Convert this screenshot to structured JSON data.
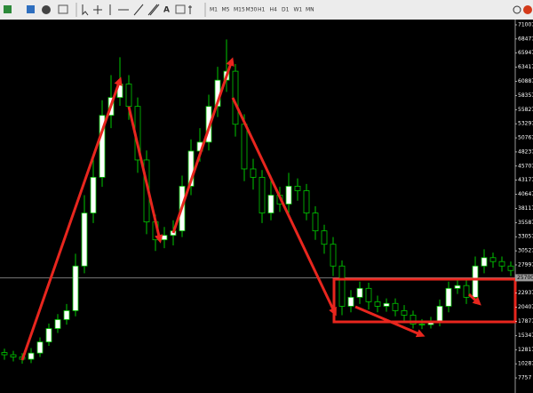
{
  "toolbar": {
    "timeframes": [
      "M1",
      "M5",
      "M15",
      "M30",
      "H1",
      "H4",
      "D1",
      "W1",
      "MN"
    ]
  },
  "chart_data": {
    "type": "candlestick",
    "open": [
      12300,
      11900,
      11500,
      11100,
      12200,
      14200,
      16600,
      18200,
      19800,
      27800,
      37300,
      43700,
      54800,
      58000,
      60400,
      56400,
      46800,
      35700,
      32500,
      33300,
      34100,
      42100,
      48400,
      50000,
      56400,
      61100,
      62700,
      53200,
      45200,
      43700,
      37300,
      40500,
      38900,
      42100,
      41300,
      37300,
      34100,
      31700,
      27800,
      20600,
      22200,
      23800,
      21400,
      20600,
      21100,
      19800,
      19000,
      17400,
      17300,
      17900,
      20600,
      23800,
      24300,
      22200,
      27800,
      29300,
      28600,
      27800
    ],
    "high": [
      13000,
      12600,
      12200,
      13100,
      15000,
      17500,
      19200,
      21000,
      30000,
      40500,
      47000,
      57500,
      62000,
      65200,
      62000,
      58000,
      48500,
      37000,
      34800,
      36000,
      44000,
      50500,
      52500,
      58500,
      63500,
      68400,
      64000,
      55000,
      47000,
      45000,
      44000,
      42000,
      44500,
      43500,
      42500,
      38500,
      35200,
      33000,
      28800,
      23500,
      25000,
      24800,
      22500,
      22000,
      22000,
      20800,
      19800,
      18300,
      18700,
      21800,
      25000,
      25500,
      25200,
      29500,
      30800,
      30200,
      29500,
      28600
    ],
    "low": [
      11000,
      10700,
      10300,
      10400,
      11500,
      13500,
      15800,
      17300,
      18800,
      26500,
      35500,
      42000,
      52500,
      56500,
      54000,
      44500,
      33500,
      30500,
      31000,
      31500,
      33000,
      40500,
      46500,
      48500,
      54500,
      59000,
      51000,
      43000,
      41500,
      35500,
      36000,
      37500,
      37000,
      39500,
      36000,
      32500,
      30000,
      26000,
      19000,
      19500,
      21000,
      20000,
      19500,
      19600,
      18800,
      18000,
      16600,
      16500,
      16600,
      17000,
      19500,
      22800,
      21000,
      21000,
      26500,
      27500,
      26800,
      26000
    ],
    "close": [
      11900,
      11500,
      11100,
      12200,
      14200,
      16600,
      18200,
      19800,
      27800,
      37300,
      43700,
      54800,
      58000,
      60400,
      56400,
      46800,
      35700,
      32500,
      33300,
      34100,
      42100,
      48400,
      50000,
      56400,
      61100,
      62700,
      53200,
      45200,
      43700,
      37300,
      40500,
      38900,
      42100,
      41300,
      37300,
      34100,
      31700,
      27800,
      20600,
      22200,
      23800,
      21400,
      20600,
      21100,
      19800,
      19000,
      17400,
      17300,
      17900,
      20600,
      23800,
      24300,
      22200,
      27800,
      29300,
      28600,
      27800,
      27000
    ],
    "ylim": [
      5690,
      72597
    ],
    "yticks": [
      71007,
      68477,
      65947,
      63417,
      60887,
      58357,
      55827,
      53297,
      50767,
      48237,
      45707,
      43177,
      40647,
      38117,
      35587,
      33057,
      30527,
      27997,
      25467,
      22937,
      20407,
      17877,
      15347,
      12817,
      10287,
      7757
    ],
    "price_line": 25700,
    "up_color": "#ffffff",
    "down_color": "#000000",
    "wick_color": "#00c800"
  }
}
